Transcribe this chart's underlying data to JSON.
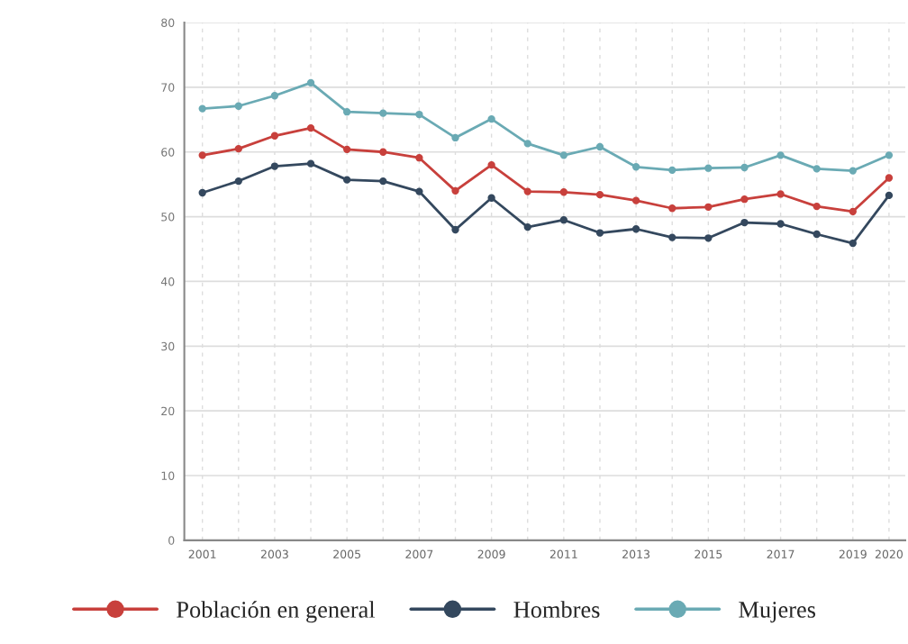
{
  "chart_data": {
    "type": "line",
    "x": [
      2001,
      2002,
      2003,
      2004,
      2005,
      2006,
      2007,
      2008,
      2009,
      2010,
      2011,
      2012,
      2013,
      2014,
      2015,
      2016,
      2017,
      2018,
      2019,
      2020
    ],
    "series": [
      {
        "name": "Población en general",
        "color": "#c8403c",
        "values": [
          59.5,
          60.5,
          62.5,
          63.7,
          60.4,
          60.0,
          59.1,
          54.0,
          58.0,
          53.9,
          53.8,
          53.4,
          52.5,
          51.3,
          51.5,
          52.7,
          53.5,
          51.6,
          50.8,
          56.0
        ]
      },
      {
        "name": "Hombres",
        "color": "#34485e",
        "values": [
          53.7,
          55.5,
          57.8,
          58.2,
          55.7,
          55.5,
          53.9,
          48.0,
          52.9,
          48.4,
          49.5,
          47.5,
          48.1,
          46.8,
          46.7,
          49.1,
          48.9,
          47.3,
          45.9,
          53.3
        ]
      },
      {
        "name": "Mujeres",
        "color": "#6aaab4",
        "values": [
          66.7,
          67.1,
          68.7,
          70.7,
          66.2,
          66.0,
          65.8,
          62.2,
          65.1,
          61.3,
          59.5,
          60.8,
          57.7,
          57.2,
          57.5,
          57.6,
          59.5,
          57.4,
          57.1,
          59.5
        ]
      }
    ],
    "xlim": [
      2000.5,
      2020.45
    ],
    "ylim": [
      0,
      80
    ],
    "xticks": [
      2001,
      {
        "value": 2002,
        "label": null
      },
      2003,
      {
        "value": 2004,
        "label": null
      },
      2005,
      {
        "value": 2006,
        "label": null
      },
      2007,
      {
        "value": 2008,
        "label": null
      },
      2009,
      {
        "value": 2010,
        "label": null
      },
      2011,
      {
        "value": 2012,
        "label": null
      },
      2013,
      {
        "value": 2014,
        "label": null
      },
      2015,
      {
        "value": 2016,
        "label": null
      },
      2017,
      {
        "value": 2018,
        "label": null
      },
      2019,
      2020
    ],
    "yticks": [
      0,
      10,
      20,
      30,
      40,
      50,
      60,
      70,
      80
    ],
    "grid": true,
    "legend": "bottom",
    "marker": "circle",
    "line_style": "solid"
  }
}
